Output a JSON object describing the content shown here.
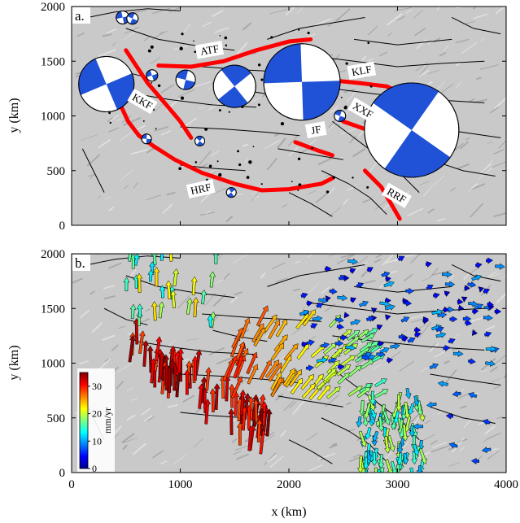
{
  "chart_data": [
    {
      "type": "map",
      "panel_label": "a.",
      "xlabel": "",
      "ylabel": "y (km)",
      "xlim": [
        0,
        4000
      ],
      "ylim": [
        0,
        2000
      ],
      "x_ticks": [],
      "y_ticks": [
        "0",
        "500",
        "1000",
        "1500",
        "2000"
      ],
      "fault_labels": [
        {
          "text": "ATF",
          "x": 1270,
          "y": 1600
        },
        {
          "text": "KLF",
          "x": 2670,
          "y": 1410
        },
        {
          "text": "KKF",
          "x": 650,
          "y": 1130
        },
        {
          "text": "XXF",
          "x": 2680,
          "y": 1050
        },
        {
          "text": "JF",
          "x": 2250,
          "y": 870
        },
        {
          "text": "HRF",
          "x": 1190,
          "y": 330
        },
        {
          "text": "RRF",
          "x": 2990,
          "y": 270
        }
      ],
      "focal_mechanisms": [
        {
          "x": 320,
          "y": 1290,
          "r": 34
        },
        {
          "x": 1050,
          "y": 1330,
          "r": 12
        },
        {
          "x": 1500,
          "y": 1270,
          "r": 26
        },
        {
          "x": 2120,
          "y": 1310,
          "r": 47
        },
        {
          "x": 3130,
          "y": 870,
          "r": 58
        },
        {
          "x": 740,
          "y": 1370,
          "r": 7
        },
        {
          "x": 2470,
          "y": 1000,
          "r": 7
        },
        {
          "x": 1470,
          "y": 300,
          "r": 6
        },
        {
          "x": 690,
          "y": 790,
          "r": 6
        },
        {
          "x": 1180,
          "y": 770,
          "r": 6
        },
        {
          "x": 470,
          "y": 1900,
          "r": 8
        },
        {
          "x": 560,
          "y": 1890,
          "r": 7
        }
      ]
    },
    {
      "type": "vector_field",
      "panel_label": "b.",
      "xlabel": "x (km)",
      "ylabel": "y (km)",
      "xlim": [
        0,
        4000
      ],
      "ylim": [
        0,
        2000
      ],
      "x_ticks": [
        "0",
        "1000",
        "2000",
        "3000",
        "4000"
      ],
      "y_ticks": [
        "0",
        "500",
        "1000",
        "1500",
        "2000"
      ],
      "colorbar": {
        "label": "mm/yr",
        "ticks": [
          "0",
          "10",
          "20",
          "30"
        ],
        "range": [
          0,
          35
        ],
        "colormap": "jet"
      }
    }
  ]
}
